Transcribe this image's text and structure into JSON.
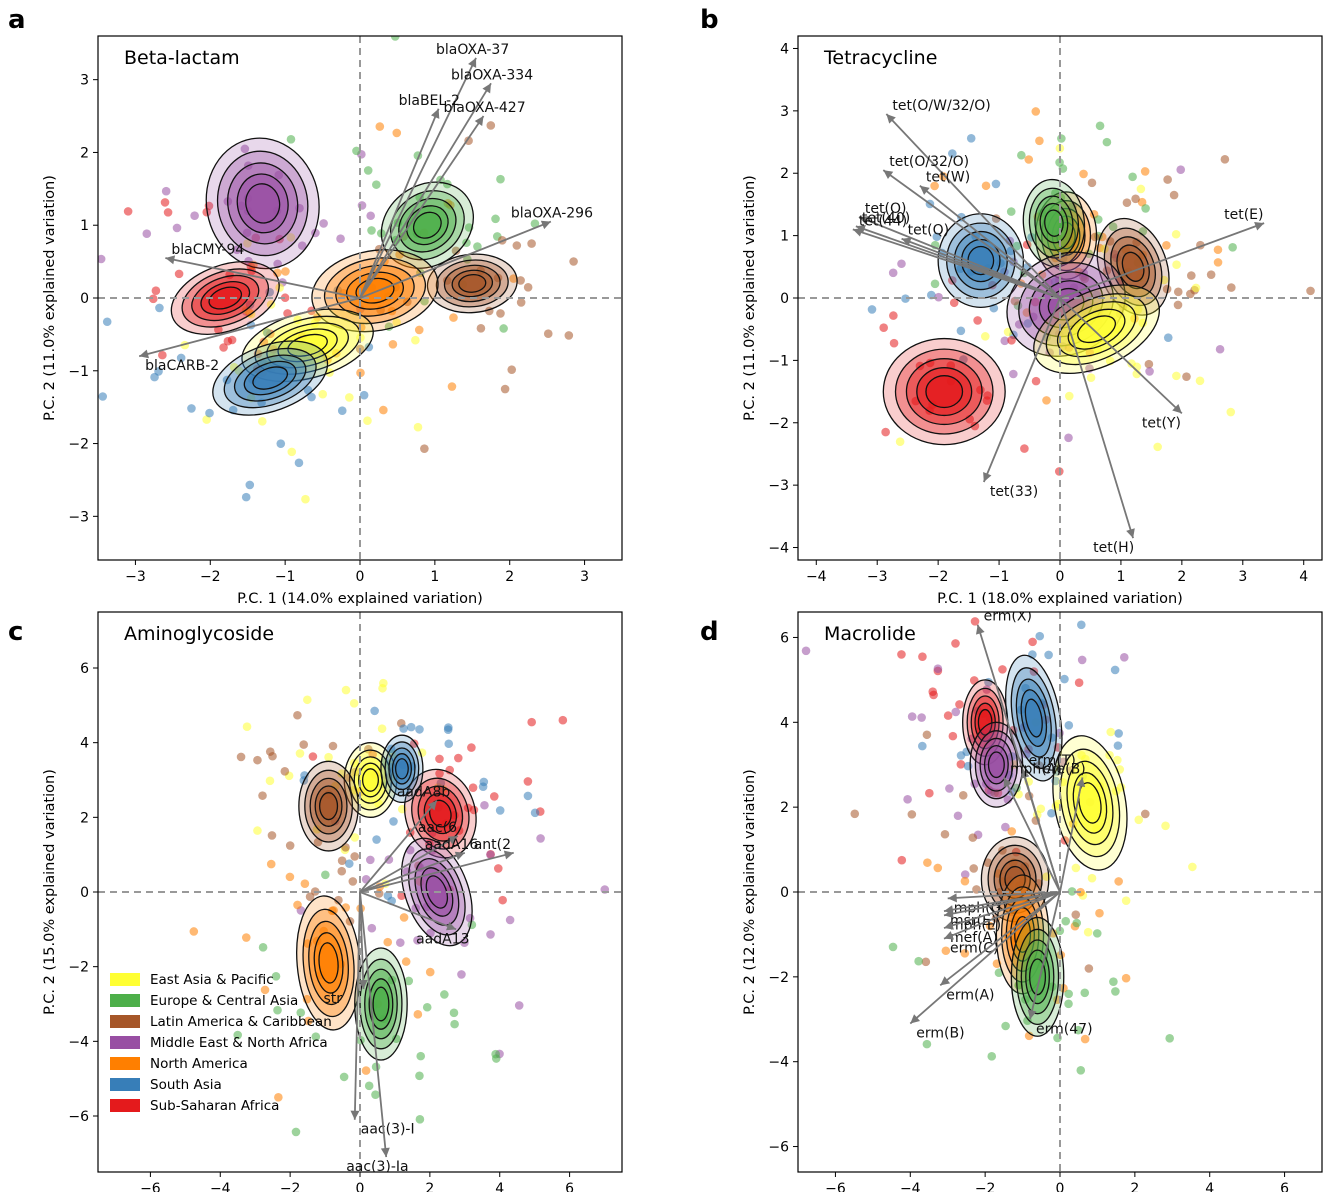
{
  "panel_letters": [
    "a",
    "b",
    "c",
    "d"
  ],
  "regions": [
    {
      "name": "East Asia & Pacific",
      "color": "#ffff33"
    },
    {
      "name": "Europe & Central Asia",
      "color": "#4daf4a"
    },
    {
      "name": "Latin America & Caribbean",
      "color": "#a65628"
    },
    {
      "name": "Middle East & North Africa",
      "color": "#984ea3"
    },
    {
      "name": "North America",
      "color": "#ff7f00"
    },
    {
      "name": "South Asia",
      "color": "#377eb8"
    },
    {
      "name": "Sub-Saharan Africa",
      "color": "#e41a1c"
    }
  ],
  "chart_data": [
    {
      "type": "scatter",
      "title": "Beta-lactam",
      "xlabel": "P.C. 1 (14.0% explained variation)",
      "ylabel": "P.C. 2 (11.0% explained variation)",
      "xlim": [
        -3.5,
        3.5
      ],
      "ylim": [
        -3.6,
        3.6
      ],
      "xticks": [
        -3,
        -2,
        -1,
        0,
        1,
        2,
        3
      ],
      "yticks": [
        -3,
        -2,
        -1,
        0,
        1,
        2,
        3
      ],
      "grid": false,
      "density_centers": [
        {
          "region": "Middle East & North Africa",
          "x": -1.3,
          "y": 1.3
        },
        {
          "region": "Europe & Central Asia",
          "x": 0.9,
          "y": 1.0
        },
        {
          "region": "Latin America & Caribbean",
          "x": 1.5,
          "y": 0.2
        },
        {
          "region": "Sub-Saharan Africa",
          "x": -1.8,
          "y": 0.0
        },
        {
          "region": "North America",
          "x": 0.2,
          "y": 0.1
        },
        {
          "region": "East Asia & Pacific",
          "x": -0.7,
          "y": -0.65
        },
        {
          "region": "South Asia",
          "x": -1.2,
          "y": -1.1
        }
      ],
      "vectors": [
        {
          "label": "blaOXA-37",
          "x": 1.55,
          "y": 3.3
        },
        {
          "label": "blaOXA-334",
          "x": 1.75,
          "y": 2.95
        },
        {
          "label": "blaBEL-2",
          "x": 1.05,
          "y": 2.6
        },
        {
          "label": "blaOXA-427",
          "x": 1.65,
          "y": 2.5
        },
        {
          "label": "blaOXA-296",
          "x": 2.55,
          "y": 1.05
        },
        {
          "label": "blaCMY-94",
          "x": -2.6,
          "y": 0.55
        },
        {
          "label": "blaCARB-2",
          "x": -2.95,
          "y": -0.8
        }
      ]
    },
    {
      "type": "scatter",
      "title": "Tetracycline",
      "xlabel": "P.C. 1 (18.0% explained variation)",
      "ylabel": "P.C. 2 (11.0% explained variation)",
      "xlim": [
        -4.3,
        4.3
      ],
      "ylim": [
        -4.2,
        4.2
      ],
      "xticks": [
        -4,
        -3,
        -2,
        -1,
        0,
        1,
        2,
        3,
        4
      ],
      "yticks": [
        -4,
        -3,
        -2,
        -1,
        0,
        1,
        2,
        3,
        4
      ],
      "grid": false,
      "density_centers": [
        {
          "region": "North America",
          "x": 0.1,
          "y": 1.0
        },
        {
          "region": "Europe & Central Asia",
          "x": -0.1,
          "y": 1.2
        },
        {
          "region": "Latin America & Caribbean",
          "x": 1.2,
          "y": 0.5
        },
        {
          "region": "South Asia",
          "x": -1.3,
          "y": 0.6
        },
        {
          "region": "Middle East & North Africa",
          "x": 0.1,
          "y": -0.1
        },
        {
          "region": "East Asia & Pacific",
          "x": 0.6,
          "y": -0.5
        },
        {
          "region": "Sub-Saharan Africa",
          "x": -1.9,
          "y": -1.5
        }
      ],
      "vectors": [
        {
          "label": "tet(O/W/32/O)",
          "x": -2.85,
          "y": 2.95
        },
        {
          "label": "tet(O/32/O)",
          "x": -2.9,
          "y": 2.05
        },
        {
          "label": "tet(W)",
          "x": -2.3,
          "y": 1.8
        },
        {
          "label": "tet(O)",
          "x": -3.3,
          "y": 1.3
        },
        {
          "label": "tet(40)",
          "x": -3.35,
          "y": 1.15
        },
        {
          "label": "tet(44)",
          "x": -3.4,
          "y": 1.1
        },
        {
          "label": "tet(Q)",
          "x": -2.6,
          "y": 0.95
        },
        {
          "label": "tet(E)",
          "x": 3.35,
          "y": 1.2
        },
        {
          "label": "tet(Y)",
          "x": 2.0,
          "y": -1.85
        },
        {
          "label": "tet(33)",
          "x": -1.25,
          "y": -2.95
        },
        {
          "label": "tet(H)",
          "x": 1.2,
          "y": -3.85
        }
      ]
    },
    {
      "type": "scatter",
      "title": "Aminoglycoside",
      "xlabel": "P.C. 1 (21.0% explained variation)",
      "ylabel": "P.C. 2 (15.0% explained variation)",
      "xlim": [
        -7.5,
        7.5
      ],
      "ylim": [
        -7.5,
        7.5
      ],
      "xticks": [
        -6,
        -4,
        -2,
        0,
        2,
        4,
        6
      ],
      "yticks": [
        -6,
        -4,
        -2,
        0,
        2,
        4,
        6
      ],
      "grid": false,
      "legend_position": "lower-left",
      "density_centers": [
        {
          "region": "East Asia & Pacific",
          "x": 0.3,
          "y": 3.0
        },
        {
          "region": "Latin America & Caribbean",
          "x": -0.9,
          "y": 2.3
        },
        {
          "region": "Sub-Saharan Africa",
          "x": 2.3,
          "y": 2.1
        },
        {
          "region": "Middle East & North Africa",
          "x": 2.2,
          "y": 0.0
        },
        {
          "region": "North America",
          "x": -0.9,
          "y": -1.9
        },
        {
          "region": "Europe & Central Asia",
          "x": 0.6,
          "y": -3.0
        },
        {
          "region": "South Asia",
          "x": 1.2,
          "y": 3.3
        }
      ],
      "vectors": [
        {
          "label": "aadA8b",
          "x": 2.2,
          "y": 2.45
        },
        {
          "label": "aac(6",
          "x": 2.8,
          "y": 1.5
        },
        {
          "label": "aadA16",
          "x": 3.0,
          "y": 1.05
        },
        {
          "label": "ant(2",
          "x": 4.4,
          "y": 1.05
        },
        {
          "label": "aadA13",
          "x": 2.75,
          "y": -1.0
        },
        {
          "label": "str",
          "x": 0.1,
          "y": -2.6
        },
        {
          "label": "aac(3)-I",
          "x": -0.15,
          "y": -6.1
        },
        {
          "label": "aac(3)-Ia",
          "x": 0.75,
          "y": -7.1
        }
      ]
    },
    {
      "type": "scatter",
      "title": "Macrolide",
      "xlabel": "P.C. 1 (21.0% explained variation)",
      "ylabel": "P.C. 2 (12.0% explained variation)",
      "xlim": [
        -7.0,
        7.0
      ],
      "ylim": [
        -6.6,
        6.6
      ],
      "xticks": [
        -6,
        -4,
        -2,
        0,
        2,
        4,
        6
      ],
      "yticks": [
        -6,
        -4,
        -2,
        0,
        2,
        4,
        6
      ],
      "grid": false,
      "density_centers": [
        {
          "region": "Sub-Saharan Africa",
          "x": -2.0,
          "y": 4.0
        },
        {
          "region": "South Asia",
          "x": -0.7,
          "y": 4.1
        },
        {
          "region": "Middle East & North Africa",
          "x": -1.7,
          "y": 3.0
        },
        {
          "region": "East Asia & Pacific",
          "x": 0.8,
          "y": 2.1
        },
        {
          "region": "Latin America & Caribbean",
          "x": -1.2,
          "y": 0.3
        },
        {
          "region": "North America",
          "x": -1.0,
          "y": -1.0
        },
        {
          "region": "Europe & Central Asia",
          "x": -0.6,
          "y": -2.0
        }
      ],
      "vectors": [
        {
          "label": "erm(X)",
          "x": -2.2,
          "y": 6.3
        },
        {
          "label": "erm(T)",
          "x": -1.0,
          "y": 2.9
        },
        {
          "label": "ere(B)",
          "x": 0.6,
          "y": 2.7
        },
        {
          "label": "mph(A)",
          "x": -1.5,
          "y": 2.7
        },
        {
          "label": "mph(G)",
          "x": -3.0,
          "y": -0.15
        },
        {
          "label": "msr(E)",
          "x": -3.1,
          "y": -0.45
        },
        {
          "label": "mph(E)",
          "x": -3.1,
          "y": -0.55
        },
        {
          "label": "mef(A)",
          "x": -3.1,
          "y": -0.85
        },
        {
          "label": "erm(C)",
          "x": -3.1,
          "y": -1.1
        },
        {
          "label": "erm(A)",
          "x": -3.2,
          "y": -2.2
        },
        {
          "label": "erm(B)",
          "x": -4.0,
          "y": -3.1
        },
        {
          "label": "erm(47)",
          "x": -0.8,
          "y": -3.0
        }
      ]
    }
  ]
}
